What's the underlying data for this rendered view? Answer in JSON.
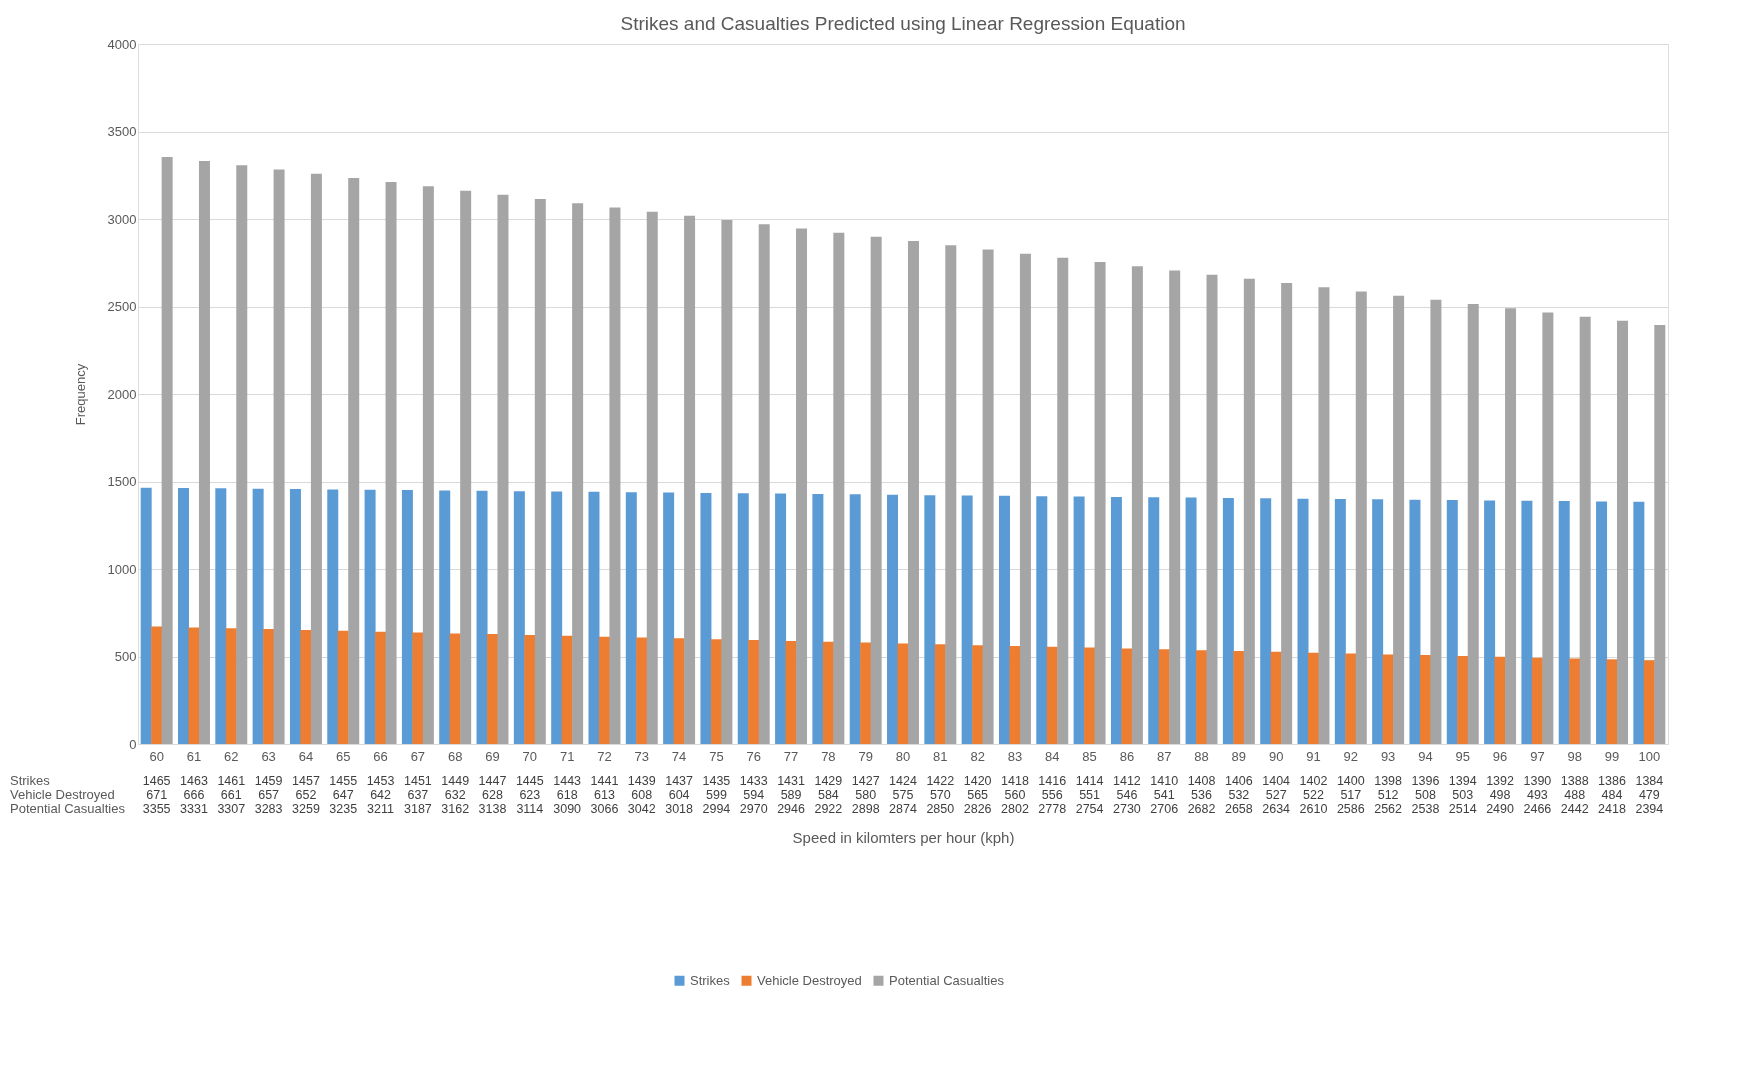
{
  "chart_data": {
    "type": "bar",
    "title": "Strikes and Casualties Predicted using Linear Regression Equation",
    "xlabel": "Speed in kilomters per hour (kph)",
    "ylabel": "Frequency",
    "categories": [
      "60",
      "61",
      "62",
      "63",
      "64",
      "65",
      "66",
      "67",
      "68",
      "69",
      "70",
      "71",
      "72",
      "73",
      "74",
      "75",
      "76",
      "77",
      "78",
      "79",
      "80",
      "81",
      "82",
      "83",
      "84",
      "85",
      "86",
      "87",
      "88",
      "89",
      "90",
      "91",
      "92",
      "93",
      "94",
      "95",
      "96",
      "97",
      "98",
      "99",
      "100"
    ],
    "series": [
      {
        "name": "Strikes",
        "color": "#5b9bd5",
        "values": [
          1465,
          1463,
          1461,
          1459,
          1457,
          1455,
          1453,
          1451,
          1449,
          1447,
          1445,
          1443,
          1441,
          1439,
          1437,
          1435,
          1433,
          1431,
          1429,
          1427,
          1424,
          1422,
          1420,
          1418,
          1416,
          1414,
          1412,
          1410,
          1408,
          1406,
          1404,
          1402,
          1400,
          1398,
          1396,
          1394,
          1392,
          1390,
          1388,
          1386,
          1384
        ]
      },
      {
        "name": "Vehicle Destroyed",
        "color": "#ed7d31",
        "values": [
          671,
          666,
          661,
          657,
          652,
          647,
          642,
          637,
          632,
          628,
          623,
          618,
          613,
          608,
          604,
          599,
          594,
          589,
          584,
          580,
          575,
          570,
          565,
          560,
          556,
          551,
          546,
          541,
          536,
          532,
          527,
          522,
          517,
          512,
          508,
          503,
          498,
          493,
          488,
          484,
          479
        ]
      },
      {
        "name": "Potential Casualties",
        "color": "#a5a5a5",
        "values": [
          3355,
          3331,
          3307,
          3283,
          3259,
          3235,
          3211,
          3187,
          3162,
          3138,
          3114,
          3090,
          3066,
          3042,
          3018,
          2994,
          2970,
          2946,
          2922,
          2898,
          2874,
          2850,
          2826,
          2802,
          2778,
          2754,
          2730,
          2706,
          2682,
          2658,
          2634,
          2610,
          2586,
          2562,
          2538,
          2514,
          2490,
          2466,
          2442,
          2418,
          2394
        ]
      }
    ],
    "ylim": [
      0,
      4000
    ],
    "yticks": [
      0,
      500,
      1000,
      1500,
      2000,
      2500,
      3000,
      3500,
      4000
    ],
    "grid": "y",
    "legend": "bottom",
    "data_labels": true
  }
}
